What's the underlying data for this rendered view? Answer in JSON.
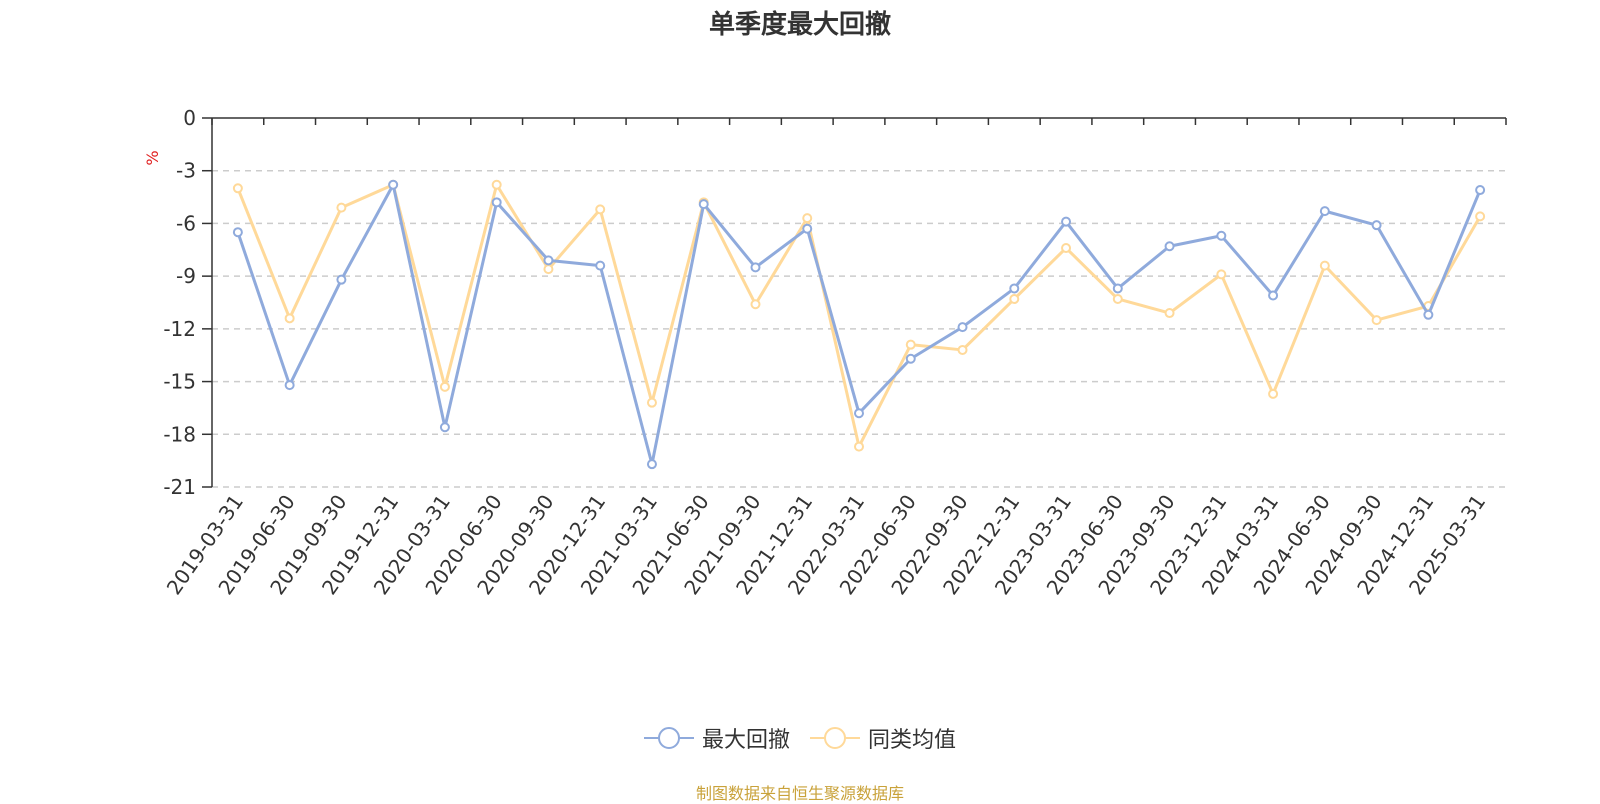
{
  "chart_data": {
    "type": "line",
    "title": "单季度最大回撤",
    "ylabel": "%",
    "xlabel": "",
    "ylim": [
      -21,
      0
    ],
    "yticks": [
      0,
      -3,
      -6,
      -9,
      -12,
      -15,
      -18,
      -21
    ],
    "grid": true,
    "categories": [
      "2019-03-31",
      "2019-06-30",
      "2019-09-30",
      "2019-12-31",
      "2020-03-31",
      "2020-06-30",
      "2020-09-30",
      "2020-12-31",
      "2021-03-31",
      "2021-06-30",
      "2021-09-30",
      "2021-12-31",
      "2022-03-31",
      "2022-06-30",
      "2022-09-30",
      "2022-12-31",
      "2023-03-31",
      "2023-06-30",
      "2023-09-30",
      "2023-12-31",
      "2024-03-31",
      "2024-06-30",
      "2024-09-30",
      "2024-12-31",
      "2025-03-31"
    ],
    "series": [
      {
        "name": "最大回撤",
        "color": "#8faadc",
        "values": [
          -6.5,
          -15.2,
          -9.2,
          -3.8,
          -17.6,
          -4.8,
          -8.1,
          -8.4,
          -19.7,
          -4.9,
          -8.5,
          -6.3,
          -16.8,
          -13.7,
          -11.9,
          -9.7,
          -5.9,
          -9.7,
          -7.3,
          -6.7,
          -10.1,
          -5.3,
          -6.1,
          -11.2,
          -4.1
        ]
      },
      {
        "name": "同类均值",
        "color": "#ffd999",
        "values": [
          -4.0,
          -11.4,
          -5.1,
          -3.8,
          -15.3,
          -3.8,
          -8.6,
          -5.2,
          -16.2,
          -4.8,
          -10.6,
          -5.7,
          -18.7,
          -12.9,
          -13.2,
          -10.3,
          -7.4,
          -10.3,
          -11.1,
          -8.9,
          -15.7,
          -8.4,
          -11.5,
          -10.7,
          -5.6
        ]
      }
    ],
    "legend_position": "bottom-center"
  },
  "footer": "制图数据来自恒生聚源数据库"
}
